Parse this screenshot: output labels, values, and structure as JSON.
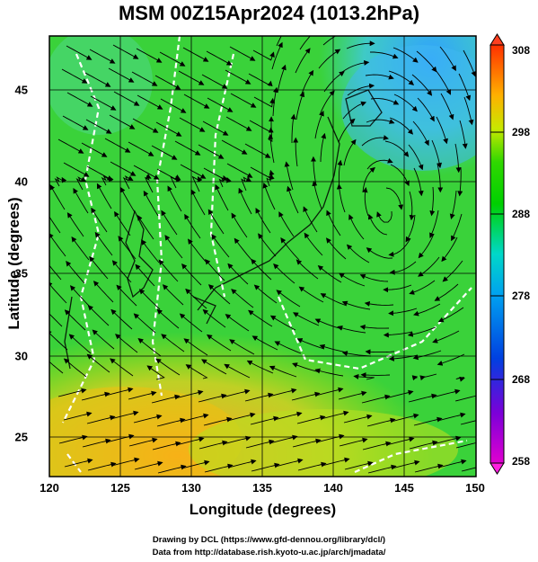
{
  "title": "MSM 00Z15Apr2024 (1013.2hPa)",
  "xaxis": {
    "label": "Longitude (degrees)",
    "ticks": [
      "120",
      "125",
      "130",
      "135",
      "140",
      "145",
      "150"
    ]
  },
  "yaxis": {
    "label": "Latitude  (degrees)",
    "ticks": [
      "25",
      "30",
      "35",
      "40",
      "45"
    ]
  },
  "colorbar": {
    "ticks": [
      "308",
      "298",
      "288",
      "278",
      "268",
      "258"
    ],
    "range": [
      258,
      308
    ]
  },
  "credits": {
    "line1": "Drawing by DCL (https://www.gfd-dennou.org/library/dcl/)",
    "line2": "Data from http://database.rish.kyoto-u.ac.jp/arch/jmadata/"
  },
  "map": {
    "lon_range": [
      120,
      150
    ],
    "lat_range": [
      22.4,
      47.6
    ],
    "field": "temperature (K) with surface wind streamlines"
  }
}
